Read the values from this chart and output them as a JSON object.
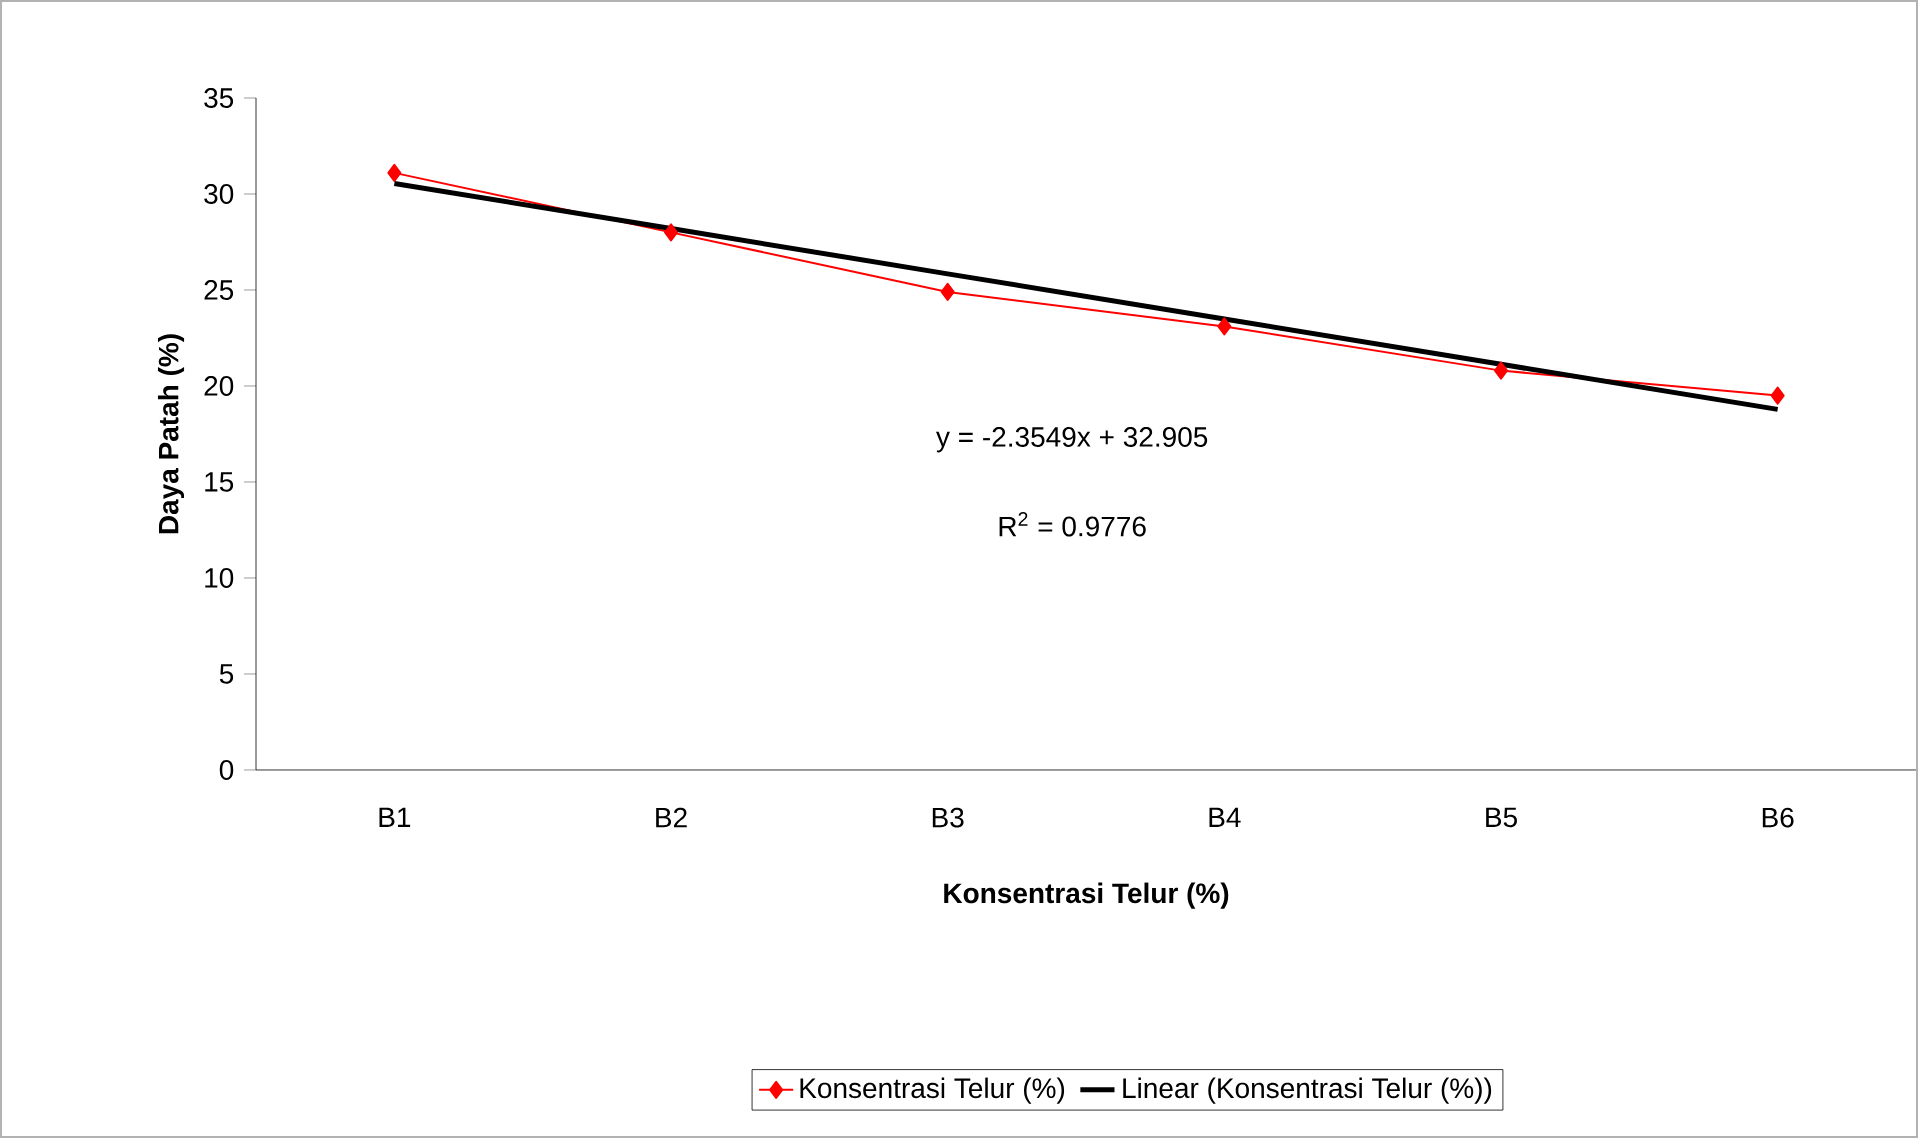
{
  "chart_data": {
    "type": "line",
    "xlabel": "Konsentrasi Telur (%)",
    "ylabel": "Daya Patah (%)",
    "categories": [
      "B1",
      "B2",
      "B3",
      "B4",
      "B5",
      "B6"
    ],
    "series": [
      {
        "name": "Konsentrasi Telur (%)",
        "color": "#ff0000",
        "values": [
          31.1,
          28.0,
          24.9,
          23.1,
          20.8,
          19.5
        ],
        "marker": "diamond"
      },
      {
        "name": "Linear (Konsentrasi Telur (%))",
        "type": "line",
        "color": "#000000",
        "values": [
          30.55,
          28.2,
          25.84,
          23.49,
          21.13,
          18.78
        ],
        "marker": "none"
      }
    ],
    "ylim": [
      0,
      35
    ],
    "yticks": [
      0,
      5,
      10,
      15,
      20,
      25,
      30,
      35
    ],
    "grid": false,
    "legend": "bottom",
    "annotations": [
      "y = -2.3549x + 32.905",
      "R$^{2}$ = 0.9776"
    ]
  }
}
